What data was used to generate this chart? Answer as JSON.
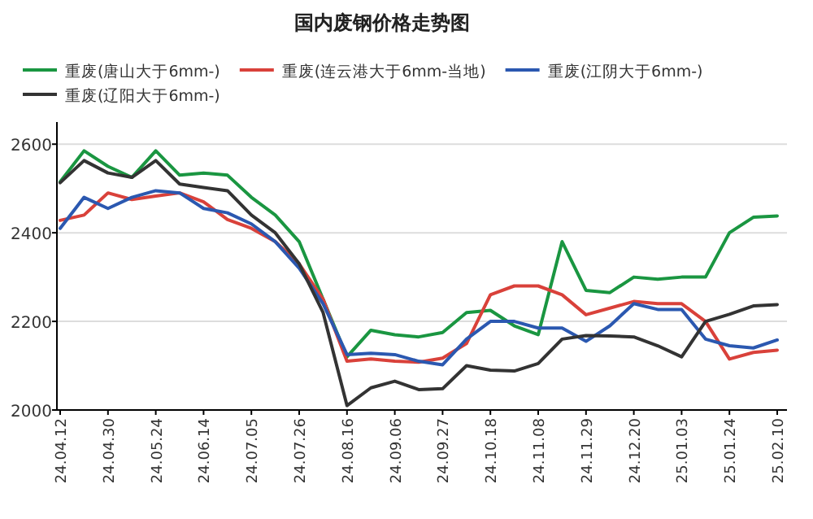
{
  "chart_data": {
    "type": "line",
    "title": "国内废钢价格走势图",
    "categories": [
      "24.04.12",
      null,
      "24.04.30",
      null,
      "24.05.24",
      null,
      "24.06.14",
      null,
      "24.07.05",
      null,
      "24.07.26",
      null,
      "24.08.16",
      null,
      "24.09.06",
      null,
      "24.09.27",
      null,
      "24.10.18",
      null,
      "24.11.08",
      null,
      "24.11.29",
      null,
      "24.12.20",
      null,
      "25.01.03",
      null,
      "25.01.24",
      null,
      "25.02.10"
    ],
    "series": [
      {
        "name": "重废(唐山大于6mm-)",
        "color": "#1a9641",
        "values": [
          2515,
          2585,
          2550,
          2525,
          2585,
          2530,
          2535,
          2530,
          2480,
          2440,
          2380,
          2250,
          2120,
          2180,
          2170,
          2165,
          2175,
          2220,
          2225,
          2190,
          2170,
          2380,
          2270,
          2265,
          2300,
          2295,
          2300,
          2300,
          2400,
          2435,
          2438
        ]
      },
      {
        "name": "重废(连云港大于6mm-当地)",
        "color": "#d9413a",
        "values": [
          2428,
          2440,
          2490,
          2475,
          2483,
          2490,
          2470,
          2430,
          2410,
          2380,
          2330,
          2250,
          2110,
          2115,
          2110,
          2108,
          2117,
          2150,
          2260,
          2280,
          2280,
          2260,
          2215,
          2230,
          2245,
          2240,
          2240,
          2200,
          2115,
          2130,
          2135
        ]
      },
      {
        "name": "重废(江阴大于6mm-)",
        "color": "#2b58b0",
        "values": [
          2410,
          2480,
          2455,
          2480,
          2495,
          2490,
          2455,
          2445,
          2420,
          2380,
          2320,
          2240,
          2125,
          2128,
          2125,
          2110,
          2102,
          2160,
          2200,
          2200,
          2185,
          2185,
          2155,
          2190,
          2240,
          2227,
          2227,
          2160,
          2145,
          2140,
          2158
        ]
      },
      {
        "name": "重废(辽阳大于6mm-)",
        "color": "#333333",
        "values": [
          2513,
          2563,
          2535,
          2525,
          2563,
          2510,
          2502,
          2495,
          2440,
          2400,
          2330,
          2220,
          2010,
          2050,
          2065,
          2046,
          2048,
          2100,
          2090,
          2088,
          2105,
          2160,
          2168,
          2167,
          2165,
          2145,
          2120,
          2200,
          2216,
          2235,
          2238
        ]
      }
    ],
    "ylim": [
      2000,
      2650
    ],
    "yticks": [
      2000,
      2200,
      2400,
      2600
    ],
    "grid": "y",
    "legend": "top left"
  }
}
